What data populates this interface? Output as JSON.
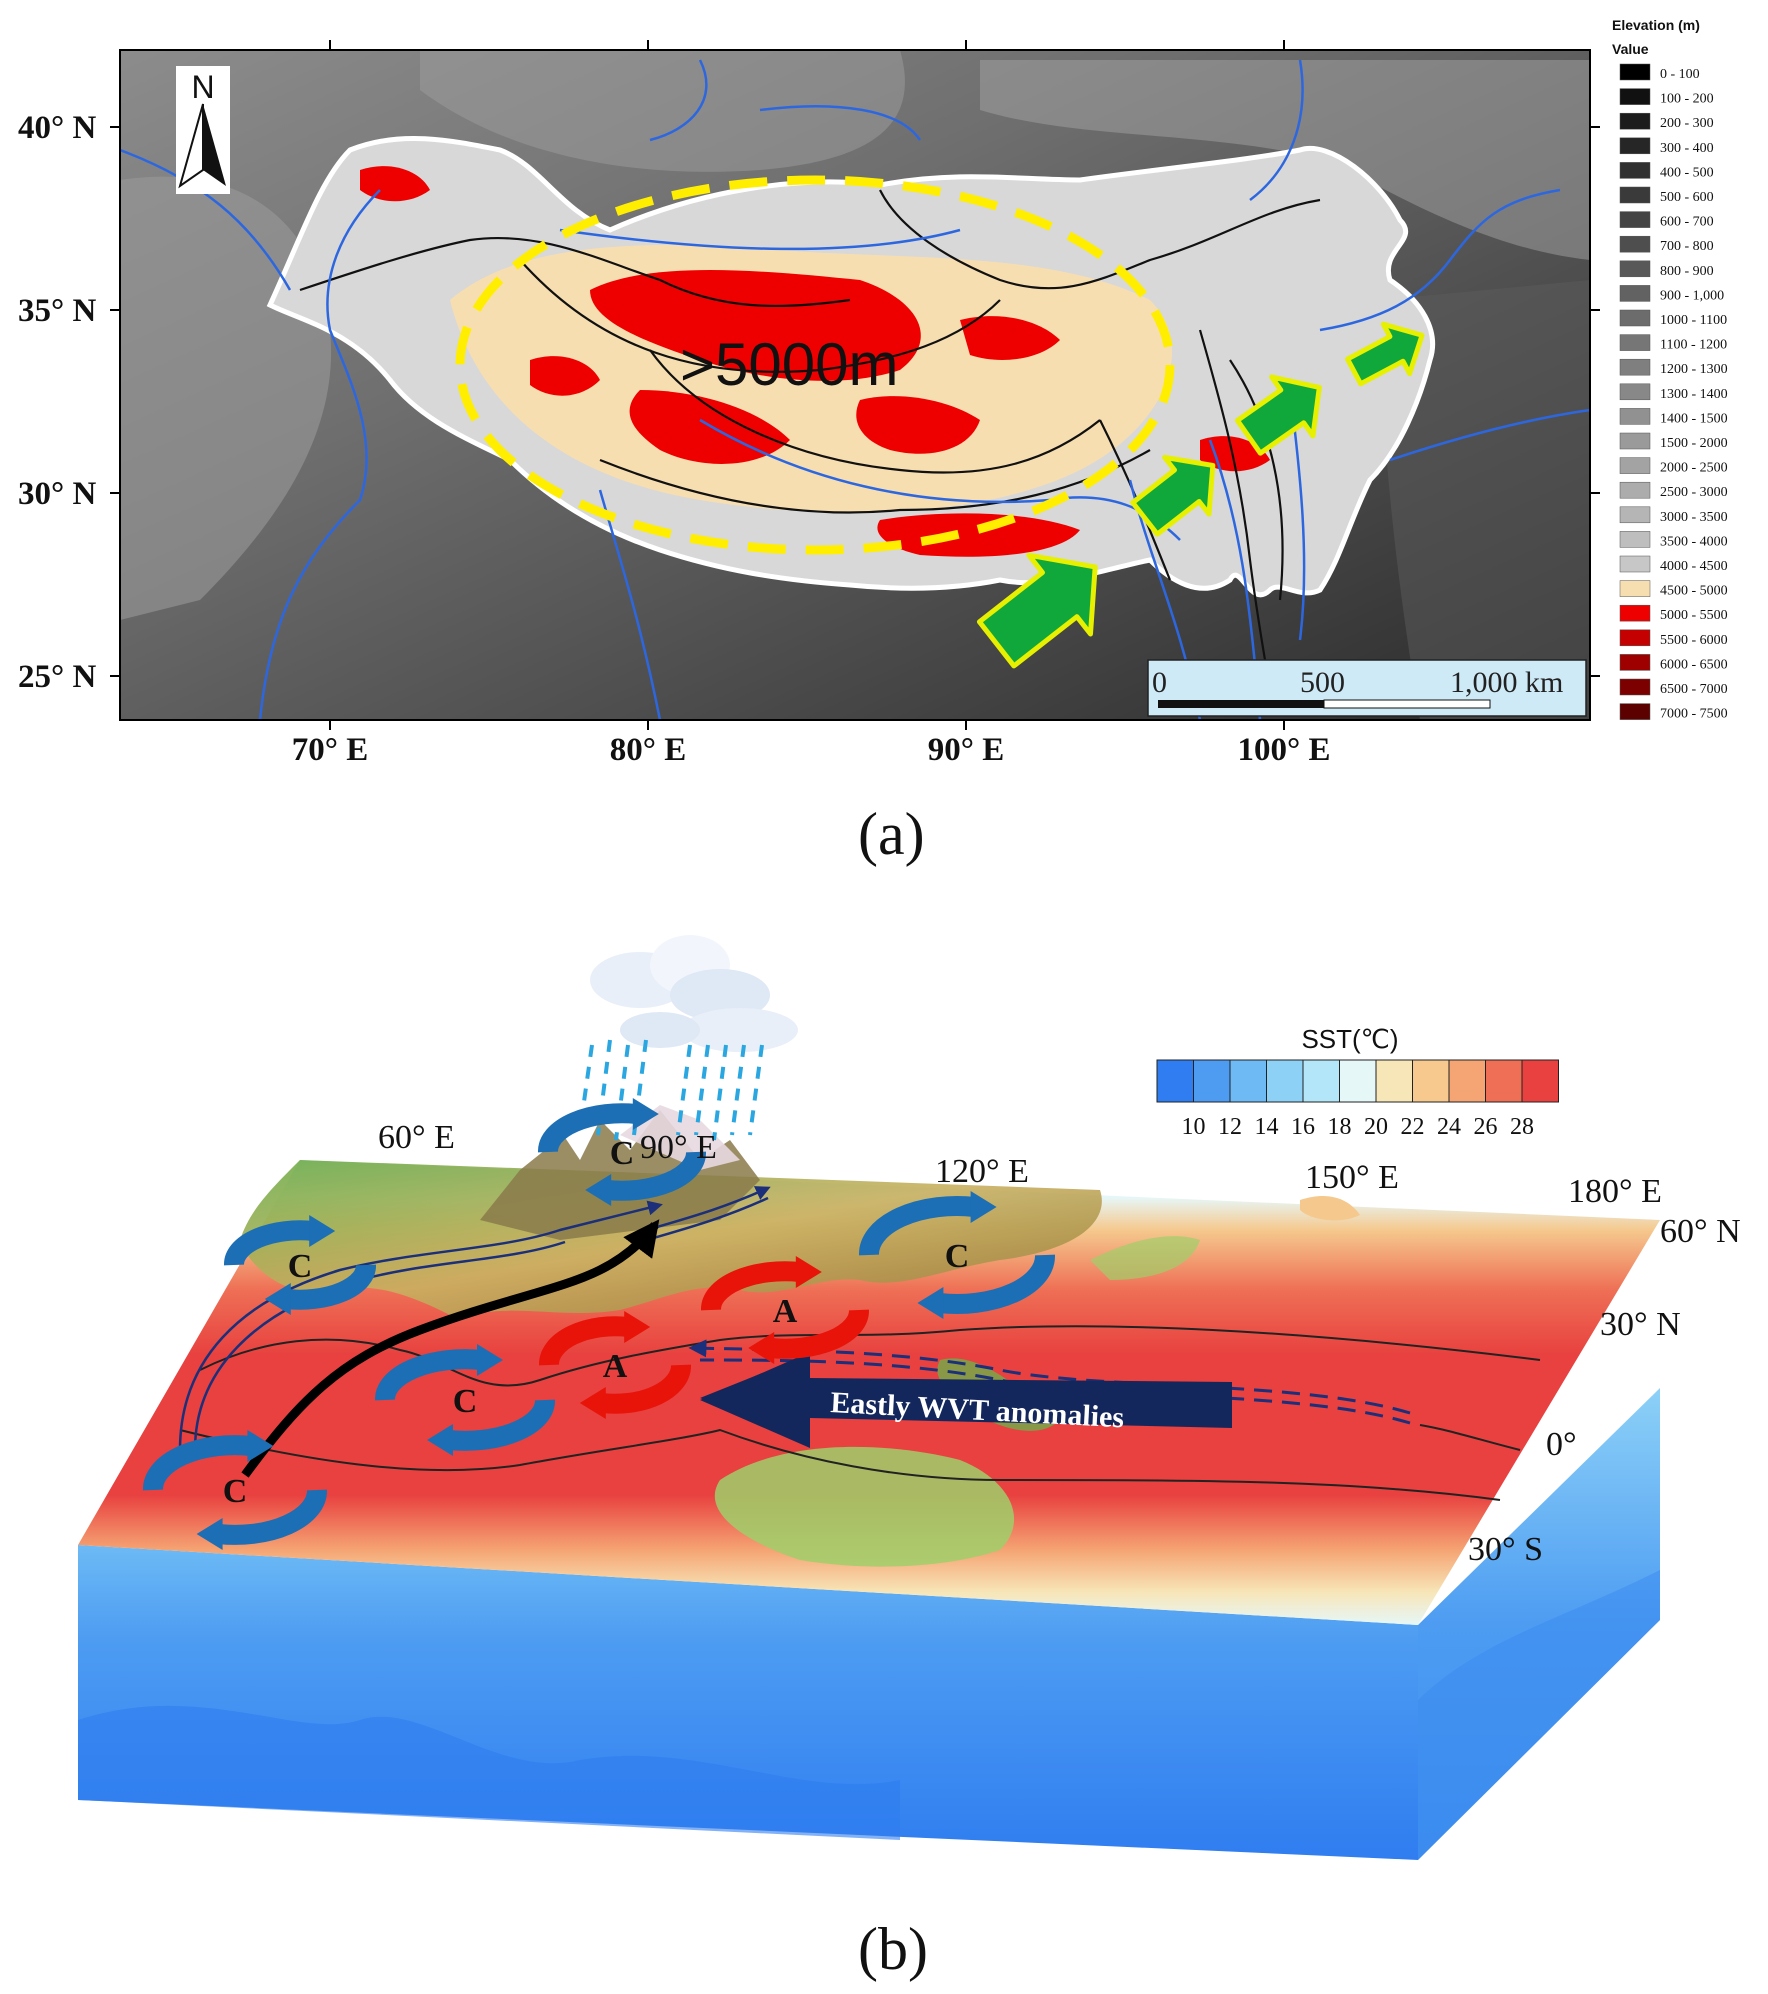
{
  "panel_a": {
    "caption": "(a)",
    "north_label": "N",
    "lat_labels": [
      "40° N",
      "35° N",
      "30° N",
      "25° N"
    ],
    "lon_labels": [
      "70° E",
      "80° E",
      "90° E",
      "100° E"
    ],
    "elevation_annotation": ">5000m",
    "scale_bar": {
      "ticks": [
        "0",
        "500",
        "1,000 km"
      ]
    },
    "legend": {
      "title": "Elevation (m)",
      "subtitle": "Value",
      "items": [
        {
          "label": "0   - 100",
          "color": "#000000"
        },
        {
          "label": "100 - 200",
          "color": "#111111"
        },
        {
          "label": "200 - 300",
          "color": "#1c1c1c"
        },
        {
          "label": "300 - 400",
          "color": "#262626"
        },
        {
          "label": "400 - 500",
          "color": "#303030"
        },
        {
          "label": "500 - 600",
          "color": "#3a3a3a"
        },
        {
          "label": "600 - 700",
          "color": "#444444"
        },
        {
          "label": "700 - 800",
          "color": "#4e4e4e"
        },
        {
          "label": "800 - 900",
          "color": "#585858"
        },
        {
          "label": "900 - 1,000",
          "color": "#626262"
        },
        {
          "label": "1000 - 1100",
          "color": "#6c6c6c"
        },
        {
          "label": "1100 - 1200",
          "color": "#767676"
        },
        {
          "label": "1200 - 1300",
          "color": "#7f7f7f"
        },
        {
          "label": "1300 - 1400",
          "color": "#888888"
        },
        {
          "label": "1400 - 1500",
          "color": "#919191"
        },
        {
          "label": "1500 - 2000",
          "color": "#9a9a9a"
        },
        {
          "label": "2000 - 2500",
          "color": "#a3a3a3"
        },
        {
          "label": "2500 - 3000",
          "color": "#acacac"
        },
        {
          "label": "3000 - 3500",
          "color": "#b5b5b5"
        },
        {
          "label": "3500 - 4000",
          "color": "#bebebe"
        },
        {
          "label": "4000 - 4500",
          "color": "#c7c7c7"
        },
        {
          "label": "4500 - 5000",
          "color": "#f7deb1"
        },
        {
          "label": "5000 - 5500",
          "color": "#ee0000"
        },
        {
          "label": "5500 - 6000",
          "color": "#c40000"
        },
        {
          "label": "6000 - 6500",
          "color": "#9e0000"
        },
        {
          "label": "6500 - 7000",
          "color": "#7c0000"
        },
        {
          "label": "7000 - 7500",
          "color": "#5c0000"
        }
      ]
    }
  },
  "panel_b": {
    "caption": "(b)",
    "sst_legend": {
      "title": "SST(℃)",
      "ticks": [
        "10",
        "12",
        "14",
        "16",
        "18",
        "20",
        "22",
        "24",
        "26",
        "28"
      ],
      "colors": [
        "#2f7df0",
        "#4d9cf2",
        "#6dbaf5",
        "#8dd1f7",
        "#b3e6f8",
        "#e6f7f8",
        "#f7e6b8",
        "#f7c98e",
        "#f5a574",
        "#ee6f55",
        "#e8413f"
      ]
    },
    "lon_labels": [
      "60° E",
      "90° E",
      "120° E",
      "150° E",
      "180° E"
    ],
    "lat_labels": [
      "60° N",
      "30° N",
      "0°",
      "30° S"
    ],
    "circulation_labels": [
      "C",
      "C",
      "C",
      "C",
      "A",
      "A",
      "C"
    ],
    "arrow_label": "Eastly WVT anomalies"
  }
}
